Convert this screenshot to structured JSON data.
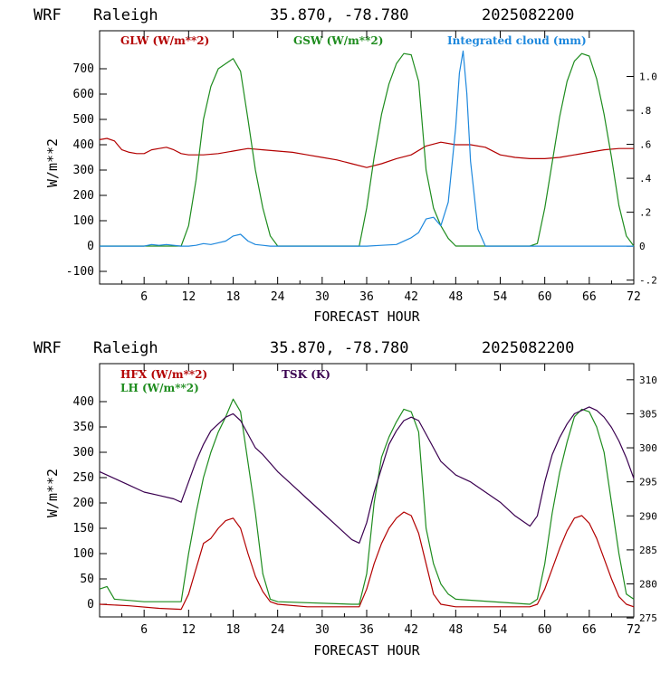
{
  "colors": {
    "red": "#b30000",
    "green": "#1e8c1e",
    "blue": "#1e88dd",
    "purple": "#3a0050"
  },
  "chart_data": [
    {
      "type": "line",
      "title": {
        "model": "WRF",
        "station": "Raleigh",
        "coords": "35.870, -78.780",
        "init": "2025082200"
      },
      "xlabel": "FORECAST HOUR",
      "ylabel": "W/m**2",
      "xlim": [
        0,
        72
      ],
      "ylim": [
        -150,
        850
      ],
      "y2lim": [
        -0.2231,
        1.2692
      ],
      "xticks": [
        "6",
        "12",
        "18",
        "24",
        "30",
        "36",
        "42",
        "48",
        "54",
        "60",
        "66",
        "72"
      ],
      "yticks": [
        "-100",
        "0",
        "100",
        "200",
        "300",
        "400",
        "500",
        "600",
        "700"
      ],
      "y2ticks": [
        "-.2",
        "0",
        ".2",
        ".4",
        ".6",
        ".8",
        "1.0"
      ],
      "legend": [
        "GLW (W/m**2)",
        "GSW (W/m**2)",
        "Integrated cloud (mm)"
      ],
      "series": [
        {
          "name": "GLW (W/m**2)",
          "color": "red",
          "axis": "left",
          "x": [
            0,
            1,
            2,
            3,
            4,
            5,
            6,
            7,
            8,
            9,
            10,
            11,
            12,
            14,
            16,
            18,
            20,
            22,
            24,
            26,
            28,
            30,
            32,
            34,
            36,
            38,
            40,
            42,
            44,
            46,
            48,
            50,
            52,
            54,
            56,
            58,
            60,
            62,
            64,
            66,
            68,
            70,
            72
          ],
          "y": [
            420,
            425,
            415,
            380,
            370,
            365,
            365,
            380,
            385,
            390,
            380,
            365,
            360,
            360,
            365,
            375,
            385,
            380,
            375,
            370,
            360,
            350,
            340,
            325,
            310,
            325,
            345,
            360,
            395,
            410,
            400,
            400,
            390,
            360,
            350,
            345,
            345,
            350,
            360,
            370,
            380,
            385,
            385
          ]
        },
        {
          "name": "GSW (W/m**2)",
          "color": "green",
          "axis": "left",
          "x": [
            0,
            11,
            12,
            13,
            14,
            15,
            16,
            17,
            18,
            19,
            20,
            21,
            22,
            23,
            24,
            35,
            36,
            37,
            38,
            39,
            40,
            41,
            42,
            43,
            44,
            45,
            46,
            47,
            48,
            58,
            59,
            60,
            61,
            62,
            63,
            64,
            65,
            66,
            67,
            68,
            69,
            70,
            71,
            72
          ],
          "y": [
            0,
            0,
            80,
            260,
            500,
            630,
            700,
            720,
            740,
            690,
            500,
            300,
            150,
            40,
            0,
            0,
            150,
            350,
            520,
            640,
            720,
            760,
            755,
            650,
            300,
            150,
            80,
            30,
            0,
            0,
            10,
            150,
            330,
            510,
            650,
            730,
            760,
            750,
            660,
            520,
            350,
            160,
            40,
            0
          ]
        },
        {
          "name": "Integrated cloud (mm)",
          "color": "blue",
          "axis": "right",
          "x": [
            0,
            6,
            7,
            8,
            9,
            10,
            11,
            12,
            13,
            14,
            15,
            16,
            17,
            18,
            19,
            20,
            21,
            22,
            23,
            24,
            36,
            38,
            40,
            42,
            43,
            44,
            45,
            46,
            47,
            48,
            48.5,
            49,
            49.5,
            50,
            51,
            52,
            72
          ],
          "y": [
            0,
            0,
            0.01,
            0.005,
            0.01,
            0.005,
            0,
            0,
            0.005,
            0.015,
            0.01,
            0.02,
            0.03,
            0.06,
            0.07,
            0.03,
            0.01,
            0.005,
            0,
            0,
            0,
            0.005,
            0.01,
            0.05,
            0.08,
            0.16,
            0.17,
            0.12,
            0.26,
            0.7,
            1.02,
            1.15,
            0.9,
            0.5,
            0.1,
            0,
            0
          ]
        }
      ]
    },
    {
      "type": "line",
      "title": {
        "model": "WRF",
        "station": "Raleigh",
        "coords": "35.870, -78.780",
        "init": "2025082200"
      },
      "xlabel": "FORECAST HOUR",
      "ylabel": "W/m**2",
      "xlim": [
        0,
        72
      ],
      "ylim": [
        -25,
        475
      ],
      "y2lim": [
        275.15,
        312.37
      ],
      "xticks": [
        "6",
        "12",
        "18",
        "24",
        "30",
        "36",
        "42",
        "48",
        "54",
        "60",
        "66",
        "72"
      ],
      "yticks": [
        "0",
        "50",
        "100",
        "150",
        "200",
        "250",
        "300",
        "350",
        "400"
      ],
      "y2ticks": [
        "275",
        "280",
        "285",
        "290",
        "295",
        "300",
        "305",
        "310"
      ],
      "legend": [
        "HFX (W/m**2)",
        "LH  (W/m**2)",
        "TSK (K)"
      ],
      "series": [
        {
          "name": "HFX (W/m**2)",
          "color": "red",
          "axis": "left",
          "x": [
            0,
            4,
            8,
            11,
            12,
            13,
            14,
            15,
            16,
            17,
            18,
            19,
            20,
            21,
            22,
            23,
            24,
            28,
            35,
            36,
            37,
            38,
            39,
            40,
            41,
            42,
            43,
            44,
            45,
            46,
            48,
            58,
            59,
            60,
            61,
            62,
            63,
            64,
            65,
            66,
            67,
            68,
            69,
            70,
            71,
            72
          ],
          "y": [
            0,
            -3,
            -8,
            -10,
            20,
            70,
            120,
            130,
            150,
            165,
            170,
            150,
            100,
            55,
            25,
            5,
            0,
            -5,
            -5,
            30,
            80,
            120,
            150,
            170,
            182,
            175,
            140,
            80,
            20,
            0,
            -5,
            -5,
            0,
            30,
            70,
            110,
            145,
            170,
            175,
            160,
            130,
            90,
            50,
            15,
            0,
            -5
          ]
        },
        {
          "name": "LH  (W/m**2)",
          "color": "green",
          "axis": "left",
          "x": [
            0,
            1,
            2,
            6,
            10,
            11,
            12,
            13,
            14,
            15,
            16,
            17,
            18,
            19,
            20,
            21,
            22,
            23,
            24,
            34,
            35,
            36,
            37,
            38,
            39,
            40,
            41,
            42,
            43,
            44,
            45,
            46,
            47,
            48,
            58,
            59,
            60,
            61,
            62,
            63,
            64,
            65,
            66,
            67,
            68,
            69,
            70,
            71,
            72
          ],
          "y": [
            30,
            35,
            10,
            5,
            5,
            5,
            100,
            180,
            250,
            300,
            340,
            370,
            405,
            380,
            280,
            180,
            60,
            10,
            5,
            0,
            0,
            60,
            200,
            290,
            330,
            360,
            385,
            380,
            340,
            150,
            80,
            40,
            20,
            10,
            0,
            10,
            80,
            180,
            260,
            320,
            370,
            385,
            380,
            350,
            300,
            200,
            100,
            20,
            10
          ]
        },
        {
          "name": "TSK (K)",
          "color": "purple",
          "axis": "right",
          "x": [
            0,
            2,
            4,
            6,
            8,
            10,
            11,
            12,
            13,
            14,
            15,
            16,
            17,
            18,
            19,
            20,
            21,
            22,
            24,
            26,
            28,
            30,
            32,
            34,
            35,
            36,
            37,
            38,
            39,
            40,
            41,
            42,
            43,
            44,
            46,
            48,
            50,
            52,
            54,
            56,
            58,
            59,
            60,
            61,
            62,
            63,
            64,
            65,
            66,
            67,
            68,
            69,
            70,
            71,
            72
          ],
          "y": [
            296.5,
            295.5,
            294.5,
            293.5,
            293.0,
            292.5,
            292.0,
            295.0,
            298.0,
            300.5,
            302.5,
            303.5,
            304.5,
            305.0,
            304.0,
            302.0,
            300.0,
            299.0,
            296.5,
            294.5,
            292.5,
            290.5,
            288.5,
            286.5,
            286.0,
            289.0,
            293.5,
            297.0,
            300.5,
            302.5,
            304.0,
            304.5,
            304.0,
            302.0,
            298.0,
            296.0,
            295.0,
            293.5,
            292.0,
            290.0,
            288.5,
            290.0,
            295.0,
            299.0,
            301.5,
            303.5,
            305.0,
            305.5,
            306.0,
            305.5,
            304.5,
            303.0,
            301.0,
            298.5,
            295.5
          ]
        }
      ]
    }
  ]
}
